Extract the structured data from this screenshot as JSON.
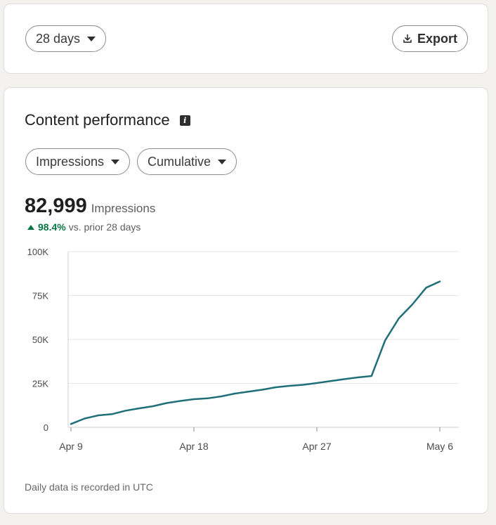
{
  "toolbar": {
    "range_label": "28 days",
    "export_label": "Export"
  },
  "content": {
    "title": "Content performance",
    "metric_select": "Impressions",
    "mode_select": "Cumulative",
    "total_value": "82,999",
    "total_label": "Impressions",
    "delta_pct": "98.4%",
    "delta_text": "vs. prior 28 days",
    "footnote": "Daily data is recorded in UTC"
  },
  "colors": {
    "line": "#1f6f78",
    "positive": "#057642"
  },
  "chart_data": {
    "type": "line",
    "title": "",
    "xlabel": "",
    "ylabel": "",
    "x": [
      "Apr 9",
      "Apr 10",
      "Apr 11",
      "Apr 12",
      "Apr 13",
      "Apr 14",
      "Apr 15",
      "Apr 16",
      "Apr 17",
      "Apr 18",
      "Apr 19",
      "Apr 20",
      "Apr 21",
      "Apr 22",
      "Apr 23",
      "Apr 24",
      "Apr 25",
      "Apr 26",
      "Apr 27",
      "Apr 28",
      "Apr 29",
      "Apr 30",
      "May 1",
      "May 2",
      "May 3",
      "May 4",
      "May 5",
      "May 6"
    ],
    "series": [
      {
        "values": [
          1900,
          5000,
          6800,
          7500,
          9500,
          10800,
          12000,
          13800,
          15000,
          16000,
          16500,
          17600,
          19200,
          20300,
          21400,
          22800,
          23600,
          24200,
          25200,
          26300,
          27400,
          28400,
          29200,
          49500,
          62000,
          70000,
          79500,
          83000
        ]
      }
    ],
    "ylim": [
      0,
      100000
    ],
    "yticks": [
      0,
      25000,
      50000,
      75000,
      100000
    ],
    "ytick_labels": [
      "0",
      "25K",
      "50K",
      "75K",
      "100K"
    ],
    "xtick_labels": [
      "Apr 9",
      "Apr 18",
      "Apr 27",
      "May 6"
    ],
    "xtick_index": [
      0,
      9,
      18,
      27
    ],
    "grid": true,
    "legend": "none"
  }
}
